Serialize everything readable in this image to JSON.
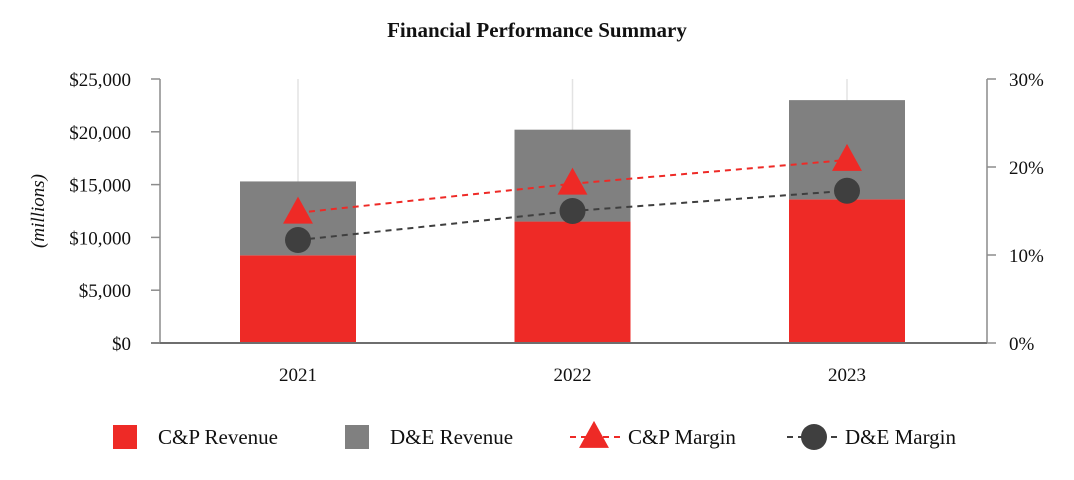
{
  "chart_data": {
    "type": "bar",
    "title": "Financial Performance Summary",
    "ylabel": "(millions)",
    "categories": [
      "2021",
      "2022",
      "2023"
    ],
    "stacked": true,
    "series": [
      {
        "name": "C&P Revenue",
        "type": "bar",
        "axis": "left",
        "color": "#ee2a26",
        "values": [
          8300,
          11500,
          13600
        ]
      },
      {
        "name": "D&E Revenue",
        "type": "bar",
        "axis": "left",
        "color": "#808080",
        "values": [
          7000,
          8700,
          9400
        ]
      },
      {
        "name": "C&P Margin",
        "type": "line",
        "axis": "right",
        "color": "#ee2a26",
        "marker": "triangle",
        "line_style": "dashed",
        "values": [
          14.8,
          18.1,
          20.8
        ]
      },
      {
        "name": "D&E Margin",
        "type": "line",
        "axis": "right",
        "color": "#3f3f3f",
        "marker": "circle",
        "line_style": "dashed",
        "values": [
          11.7,
          15.0,
          17.3
        ]
      }
    ],
    "y_left": {
      "range": [
        0,
        25000
      ],
      "ticks": [
        0,
        5000,
        10000,
        15000,
        20000,
        25000
      ],
      "tick_labels": [
        "$0",
        "$5,000",
        "$10,000",
        "$15,000",
        "$20,000",
        "$25,000"
      ]
    },
    "y_right": {
      "range": [
        0,
        30
      ],
      "ticks": [
        0,
        10,
        20,
        30
      ],
      "tick_labels": [
        "0%",
        "10%",
        "20%",
        "30%"
      ]
    },
    "grid": "vertical",
    "legend_position": "bottom"
  }
}
